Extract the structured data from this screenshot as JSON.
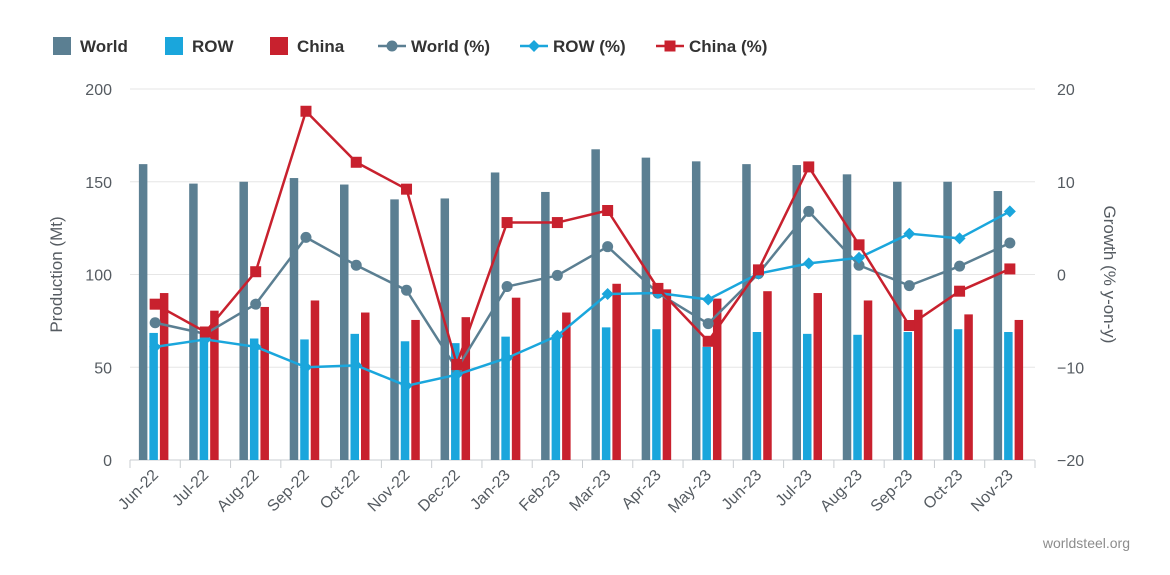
{
  "credit": "worldsteel.org",
  "chart_data": {
    "type": "bar",
    "categories": [
      "Jun-22",
      "Jul-22",
      "Aug-22",
      "Sep-22",
      "Oct-22",
      "Nov-22",
      "Dec-22",
      "Jan-23",
      "Feb-23",
      "Mar-23",
      "Apr-23",
      "May-23",
      "Jun-23",
      "Jul-23",
      "Aug-23",
      "Sep-23",
      "Oct-23",
      "Nov-23"
    ],
    "ylabel": "Production (Mt)",
    "y2label": "Growth (% y-on-y)",
    "ylim": [
      0,
      200
    ],
    "y2lim": [
      -20,
      20
    ],
    "yticks": [
      "0",
      "50",
      "100",
      "150",
      "200"
    ],
    "y2ticks": [
      "−20",
      "−10",
      "0",
      "10",
      "20"
    ],
    "legend_position": "top-left",
    "series": [
      {
        "name": "World",
        "kind": "bar",
        "axis": "left",
        "color": "#5b7f92",
        "values": [
          159.5,
          149,
          150,
          152,
          148.5,
          140.5,
          141,
          155,
          144.5,
          167.5,
          163,
          161,
          159.5,
          159,
          154,
          150,
          150,
          145
        ]
      },
      {
        "name": "ROW",
        "kind": "bar",
        "axis": "left",
        "color": "#1aa6dc",
        "values": [
          68.5,
          68,
          65.5,
          65,
          68,
          64,
          63,
          66.5,
          67,
          71.5,
          70.5,
          61,
          69,
          68,
          67.5,
          69,
          70.5,
          69
        ]
      },
      {
        "name": "China",
        "kind": "bar",
        "axis": "left",
        "color": "#c8212e",
        "values": [
          90,
          80.5,
          82.5,
          86,
          79.5,
          75.5,
          77,
          87.5,
          79.5,
          95,
          92,
          87,
          91,
          90,
          86,
          81,
          78.5,
          75.5
        ]
      },
      {
        "name": "World (%)",
        "kind": "line",
        "axis": "right",
        "color": "#5b7f92",
        "marker": "circle",
        "values": [
          -5.2,
          -6.4,
          -3.2,
          4,
          1,
          -1.7,
          -10.2,
          -1.3,
          -0.1,
          3,
          -2,
          -5.3,
          0.1,
          6.8,
          1,
          -1.2,
          0.9,
          3.4
        ]
      },
      {
        "name": "ROW (%)",
        "kind": "line",
        "axis": "right",
        "color": "#1aa6dc",
        "marker": "diamond",
        "values": [
          -7.8,
          -7,
          -7.8,
          -10,
          -9.8,
          -12,
          -10.8,
          -9,
          -6.6,
          -2.1,
          -2,
          -2.7,
          0.1,
          1.2,
          1.8,
          4.4,
          3.9,
          6.8
        ]
      },
      {
        "name": "China (%)",
        "kind": "line",
        "axis": "right",
        "color": "#c8212e",
        "marker": "square",
        "values": [
          -3.2,
          -6.2,
          0.3,
          17.6,
          12.1,
          9.2,
          -9.7,
          5.6,
          5.6,
          6.9,
          -1.5,
          -7.2,
          0.5,
          11.6,
          3.2,
          -5.5,
          -1.8,
          0.6
        ]
      }
    ]
  }
}
